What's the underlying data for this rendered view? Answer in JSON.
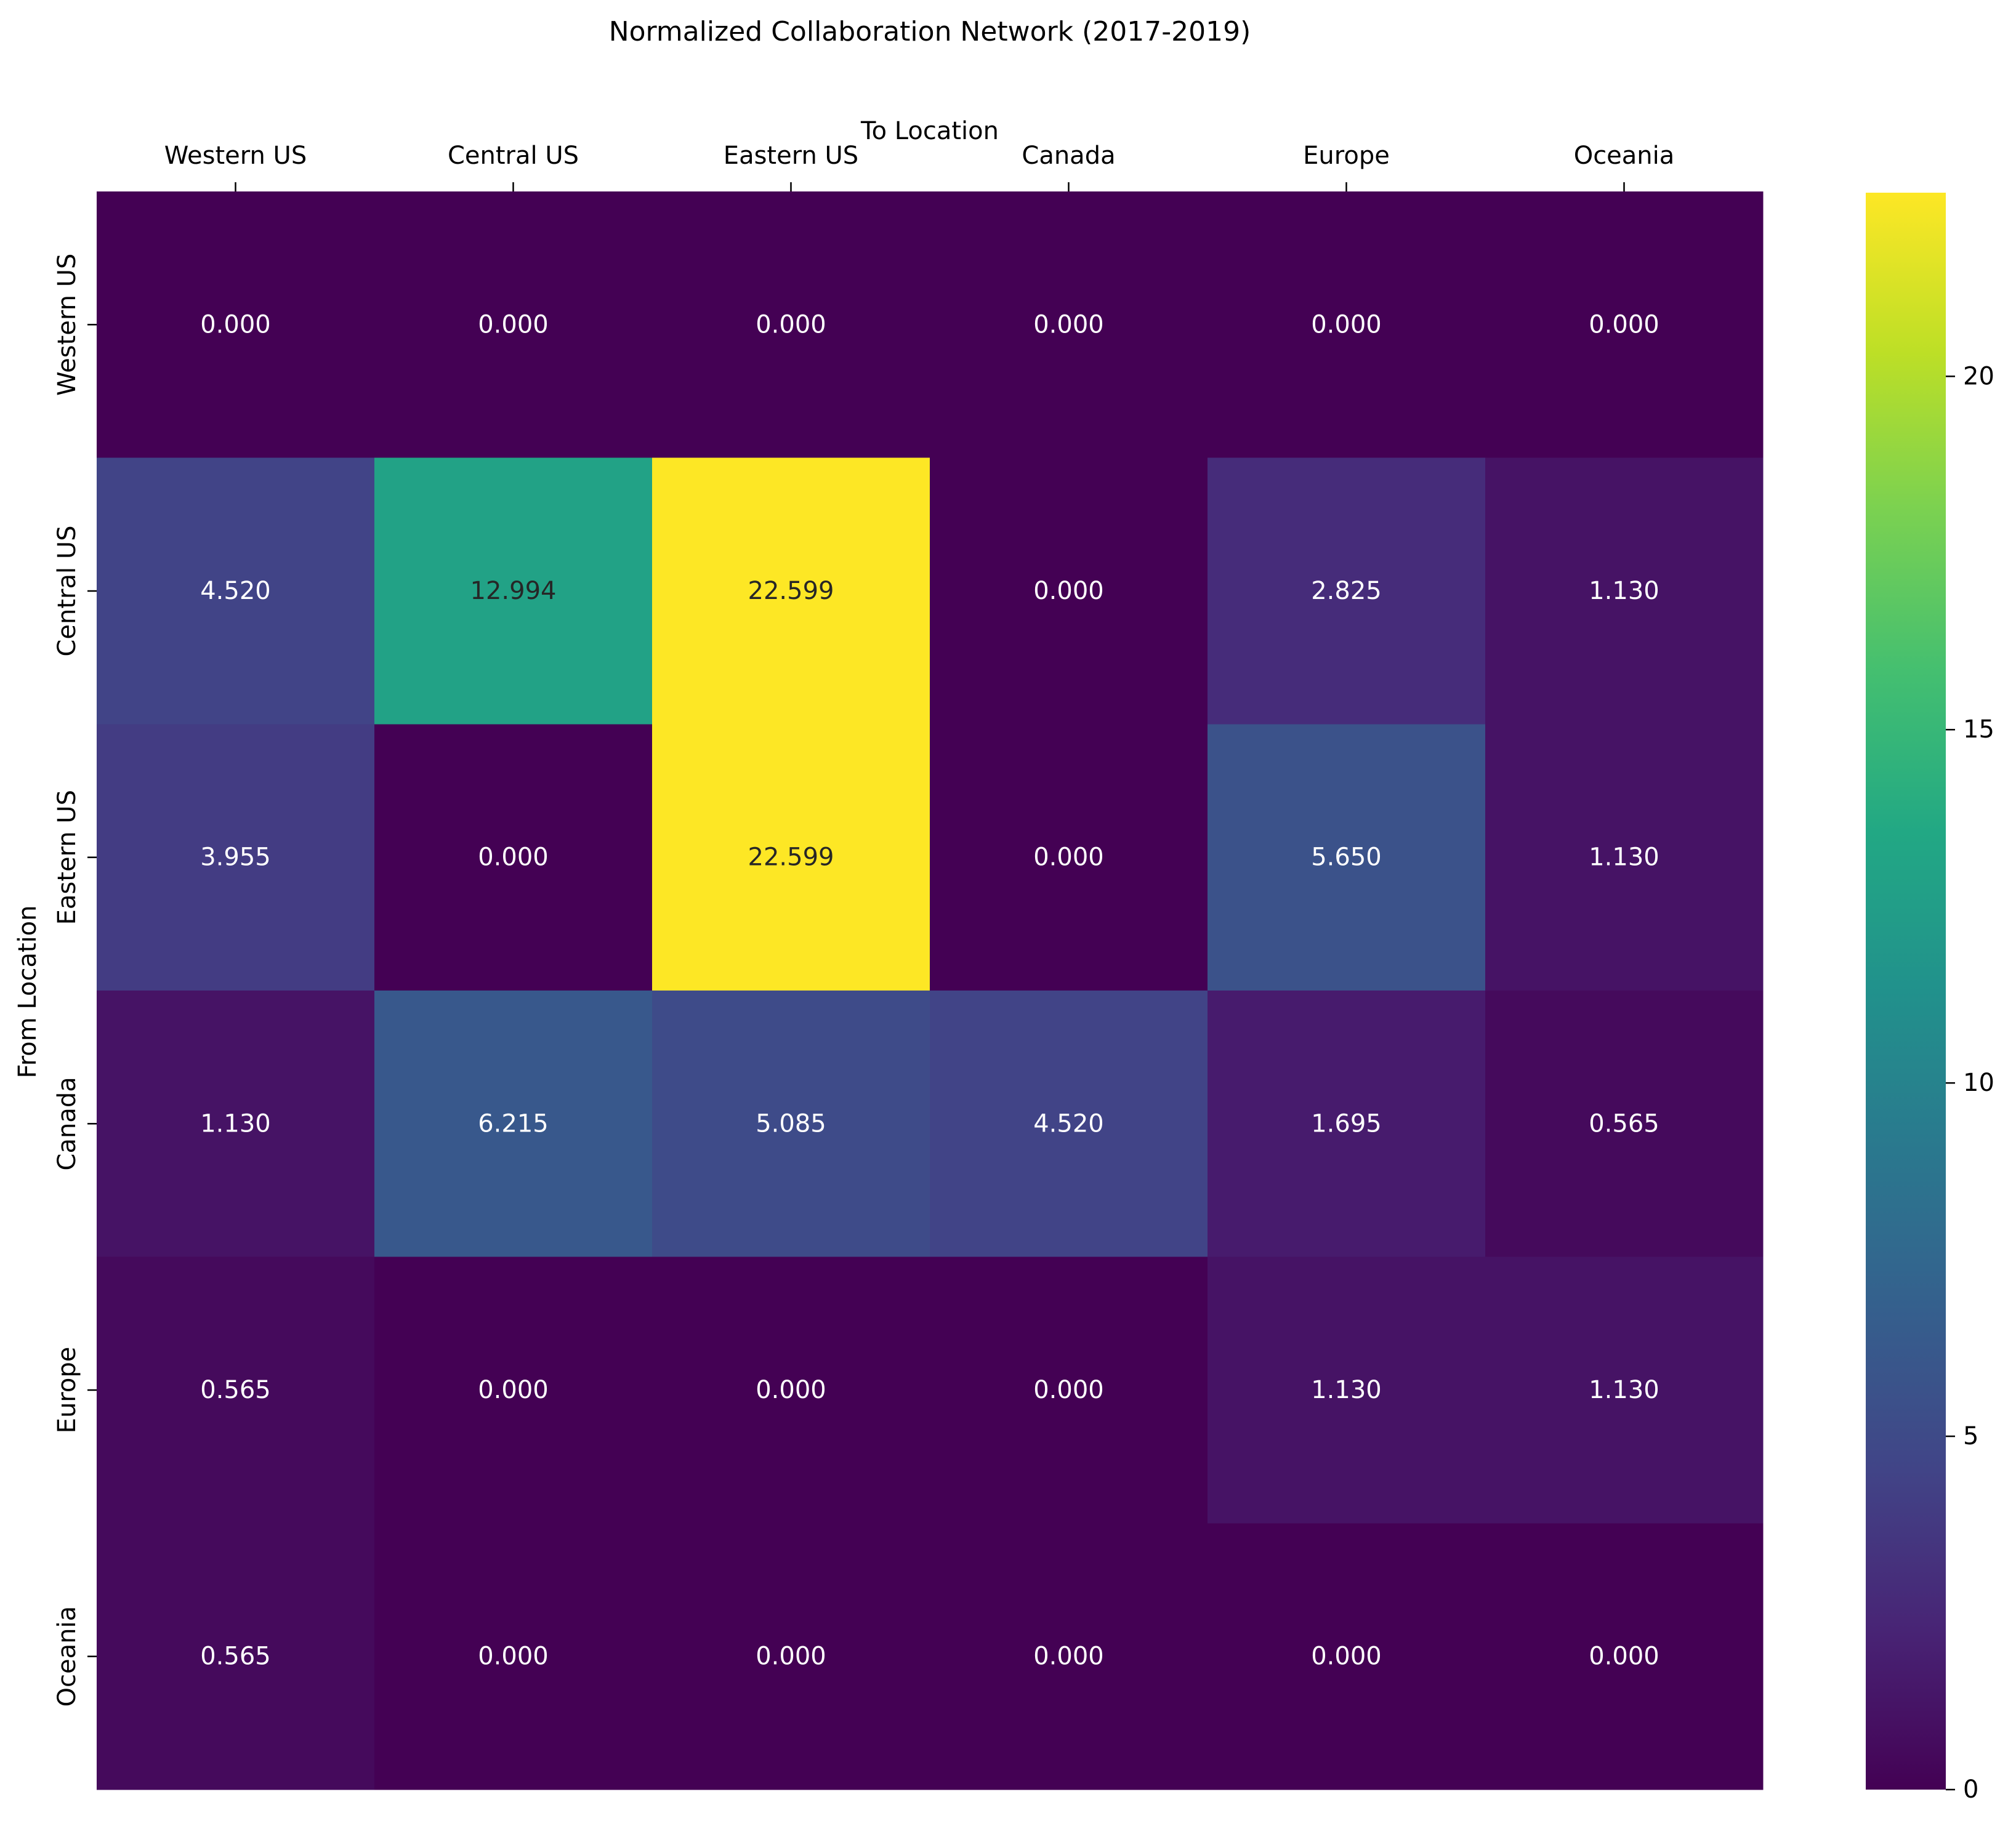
{
  "chart_data": {
    "type": "heatmap",
    "title": "Normalized Collaboration Network (2017-2019)",
    "xlabel": "To Location",
    "ylabel": "From Location",
    "x_categories": [
      "Western US",
      "Central US",
      "Eastern US",
      "Canada",
      "Europe",
      "Oceania"
    ],
    "y_categories": [
      "Western US",
      "Central US",
      "Eastern US",
      "Canada",
      "Europe",
      "Oceania"
    ],
    "values": [
      [
        0.0,
        0.0,
        0.0,
        0.0,
        0.0,
        0.0
      ],
      [
        4.52,
        12.994,
        22.599,
        0.0,
        2.825,
        1.13
      ],
      [
        3.955,
        0.0,
        22.599,
        0.0,
        5.65,
        1.13
      ],
      [
        1.13,
        6.215,
        5.085,
        4.52,
        1.695,
        0.565
      ],
      [
        0.565,
        0.0,
        0.0,
        0.0,
        1.13,
        1.13
      ],
      [
        0.565,
        0.0,
        0.0,
        0.0,
        0.0,
        0.0
      ]
    ],
    "value_format": "3 decimals",
    "colormap": "viridis",
    "vmin": 0,
    "vmax": 22.599,
    "colorbar_ticks": [
      0,
      5,
      10,
      15,
      20
    ],
    "x_tick_position": "top",
    "legend": "colorbar right",
    "grid": false
  }
}
